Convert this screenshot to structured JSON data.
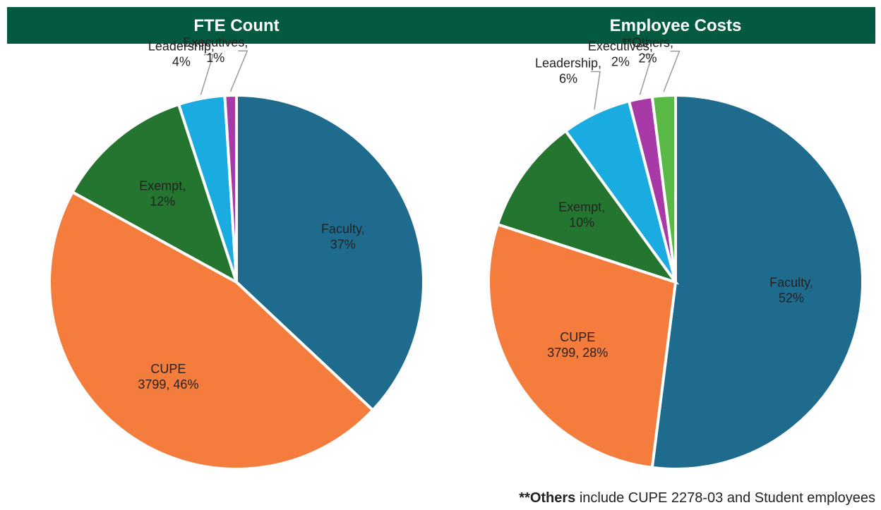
{
  "chart_data": [
    {
      "type": "pie",
      "title": "FTE Count",
      "slices": [
        {
          "label": [
            "Faculty,",
            "37%"
          ],
          "value": 37,
          "color": "#1f6b8e"
        },
        {
          "label": [
            "CUPE",
            "3799, 46%"
          ],
          "value": 46,
          "color": "#f47c3c"
        },
        {
          "label": [
            "Exempt,",
            "12%"
          ],
          "value": 12,
          "color": "#23752f"
        },
        {
          "label": [
            "Leadership,",
            "4%"
          ],
          "value": 4,
          "color": "#1aabe0"
        },
        {
          "label": [
            "Executives,",
            "1%"
          ],
          "value": 1,
          "color": "#a83aa8"
        }
      ]
    },
    {
      "type": "pie",
      "title": "Employee Costs",
      "slices": [
        {
          "label": [
            "Faculty,",
            "52%"
          ],
          "value": 52,
          "color": "#1f6b8e"
        },
        {
          "label": [
            "CUPE",
            "3799, 28%"
          ],
          "value": 28,
          "color": "#f47c3c"
        },
        {
          "label": [
            "Exempt,",
            "10%"
          ],
          "value": 10,
          "color": "#23752f"
        },
        {
          "label": [
            "Leadership,",
            "6%"
          ],
          "value": 6,
          "color": "#1aabe0"
        },
        {
          "label": [
            "Executives,",
            "2%"
          ],
          "value": 2,
          "color": "#a83aa8"
        },
        {
          "label": [
            "**Others,",
            "2%"
          ],
          "value": 2,
          "color": "#5ab847"
        }
      ]
    }
  ],
  "footnote": {
    "bold": "**Others",
    "text": " include CUPE 2278-03 and Student employees"
  }
}
